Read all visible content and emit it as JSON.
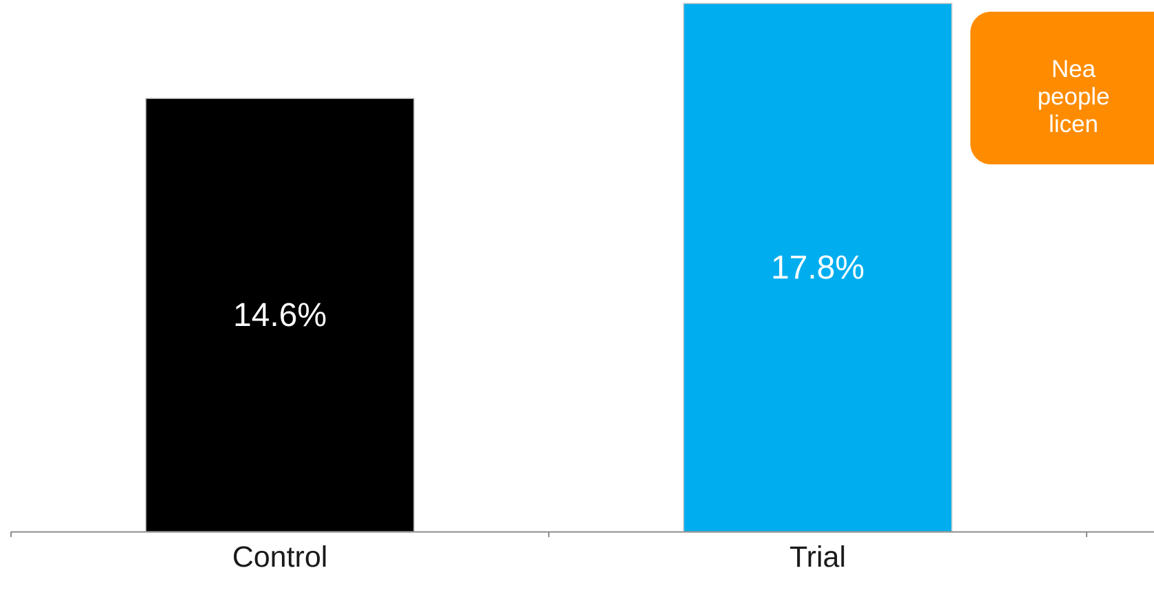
{
  "chart_data": {
    "type": "bar",
    "categories": [
      "Control",
      "Trial"
    ],
    "values": [
      14.6,
      17.8
    ],
    "value_labels": [
      "14.6%",
      "17.8%"
    ],
    "bar_colors": [
      "#000000",
      "#00aeef"
    ],
    "ylim": [
      0,
      17.8
    ],
    "grid": false,
    "legend": "none"
  },
  "callout": {
    "lines": [
      "Nea",
      "people",
      "licen"
    ],
    "color": "#ff8c00",
    "text_color": "#ffffff"
  },
  "axis_color": "#8c8c8c"
}
